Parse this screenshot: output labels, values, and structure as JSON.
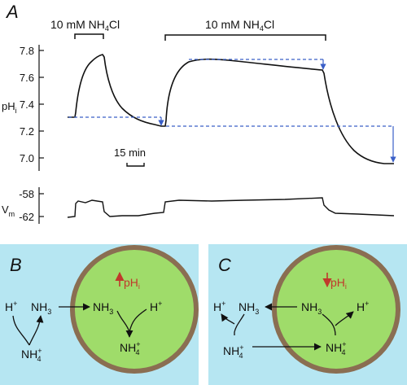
{
  "panel_a": {
    "label": "A",
    "y_label_ph": "pH",
    "y_label_ph_sub": "i",
    "y_label_vm": "V",
    "y_label_vm_sub": "m",
    "ph_ticks": [
      "7.8",
      "7.6",
      "7.4",
      "7.2",
      "7.0"
    ],
    "vm_ticks": [
      "-58",
      "-62"
    ],
    "pulse1_label": "10 mM NH",
    "pulse1_sub": "4",
    "pulse1_tail": "Cl",
    "pulse2_label": "10 mM NH",
    "pulse2_sub": "4",
    "pulse2_tail": "Cl",
    "scale_label": "15 min"
  },
  "panel_b": {
    "label": "B",
    "ph_label": "pH",
    "ph_sub": "i",
    "outside_h": "H",
    "outside_h_sup": "+",
    "outside_nh3": "NH",
    "outside_nh3_sub": "3",
    "outside_nh4": "NH",
    "outside_nh4_sub": "4",
    "outside_nh4_sup": "+",
    "inside_nh3": "NH",
    "inside_nh3_sub": "3",
    "inside_h": "H",
    "inside_h_sup": "+",
    "inside_nh4": "NH",
    "inside_nh4_sub": "4",
    "inside_nh4_sup": "+"
  },
  "panel_c": {
    "label": "C",
    "ph_label": "pH",
    "ph_sub": "i",
    "outside_h": "H",
    "outside_h_sup": "+",
    "outside_nh3": "NH",
    "outside_nh3_sub": "3",
    "outside_nh4": "NH",
    "outside_nh4_sub": "4",
    "outside_nh4_sup": "+",
    "inside_nh3": "NH",
    "inside_nh3_sub": "3",
    "inside_h": "H",
    "inside_h_sup": "+",
    "inside_nh4": "NH",
    "inside_nh4_sub": "4",
    "inside_nh4_sup": "+"
  },
  "colors": {
    "panel_bg": "#b6e6f2",
    "cell_fill": "#9fdc6a",
    "cell_border": "#8a6e52",
    "dashed": "#3a5fc8",
    "arrow_red": "#c0392b"
  }
}
